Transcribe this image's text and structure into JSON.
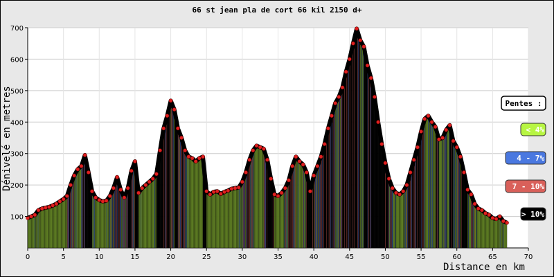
{
  "chart_data": {
    "type": "area",
    "title": "66 st jean pla de cort 66 kil 2150 d+",
    "xlabel": "Distance en km",
    "ylabel": "Dénivelé en metres",
    "xlim": [
      0,
      70
    ],
    "ylim": [
      0,
      700
    ],
    "xticks": [
      0,
      5,
      10,
      15,
      20,
      25,
      30,
      35,
      40,
      45,
      50,
      55,
      60,
      65,
      70
    ],
    "yticks": [
      100,
      200,
      300,
      400,
      500,
      600,
      700
    ],
    "grid": true,
    "legend": {
      "title": "Pentes :",
      "placement": "right",
      "items": [
        {
          "label": "< 4%",
          "color": "#b7f542",
          "text_color": "#ffffff"
        },
        {
          "label": "4 - 7%",
          "color": "#4a78e0",
          "text_color": "#ffffff"
        },
        {
          "label": "7 - 10%",
          "color": "#d9605a",
          "text_color": "#ffffff"
        },
        {
          "label": "> 10%",
          "color": "#000000",
          "text_color": "#ffffff"
        }
      ]
    },
    "series": [
      {
        "x": [
          0,
          0.5,
          1,
          1.5,
          2,
          2.5,
          3,
          3.5,
          4,
          4.5,
          5,
          5.5,
          6,
          6.5,
          7,
          7.5,
          8,
          8.5,
          9,
          9.5,
          10,
          10.5,
          11,
          11.5,
          12,
          12.5,
          13,
          13.5,
          14,
          14.5,
          15,
          15.5,
          16,
          16.5,
          17,
          17.5,
          18,
          18.5,
          19,
          19.5,
          20,
          20.5,
          21,
          21.5,
          22,
          22.5,
          23,
          23.5,
          24,
          24.5,
          25,
          25.5,
          26,
          26.5,
          27,
          27.5,
          28,
          28.5,
          29,
          29.5,
          30,
          30.5,
          31,
          31.5,
          32,
          32.5,
          33,
          33.5,
          34,
          34.5,
          35,
          35.5,
          36,
          36.5,
          37,
          37.5,
          38,
          38.5,
          39,
          39.5,
          40,
          40.5,
          41,
          41.5,
          42,
          42.5,
          43,
          43.5,
          44,
          44.5,
          45,
          45.5,
          46,
          46.5,
          47,
          47.5,
          48,
          48.5,
          49,
          49.5,
          50,
          50.5,
          51,
          51.5,
          52,
          52.5,
          53,
          53.5,
          54,
          54.5,
          55,
          55.5,
          56,
          56.5,
          57,
          57.5,
          58,
          58.5,
          59,
          59.5,
          60,
          60.5,
          61,
          61.5,
          62,
          62.5,
          63,
          63.5,
          64,
          64.5,
          65,
          65.5,
          66,
          66.5,
          67
        ],
        "y": [
          95,
          100,
          105,
          120,
          125,
          128,
          130,
          135,
          140,
          148,
          155,
          165,
          200,
          230,
          250,
          260,
          295,
          240,
          180,
          160,
          152,
          148,
          150,
          165,
          190,
          225,
          185,
          160,
          190,
          245,
          275,
          175,
          190,
          200,
          210,
          220,
          235,
          310,
          380,
          420,
          468,
          440,
          380,
          350,
          310,
          290,
          285,
          275,
          285,
          290,
          180,
          170,
          178,
          180,
          172,
          178,
          182,
          188,
          190,
          192,
          210,
          240,
          280,
          310,
          325,
          320,
          315,
          280,
          220,
          170,
          165,
          175,
          190,
          215,
          260,
          290,
          275,
          265,
          240,
          180,
          230,
          260,
          290,
          330,
          380,
          420,
          460,
          480,
          510,
          560,
          600,
          650,
          697,
          660,
          640,
          580,
          540,
          480,
          400,
          330,
          270,
          220,
          190,
          175,
          170,
          180,
          200,
          240,
          280,
          320,
          370,
          410,
          420,
          400,
          385,
          345,
          350,
          375,
          390,
          340,
          320,
          290,
          240,
          185,
          170,
          140,
          125,
          120,
          110,
          105,
          95,
          92,
          100,
          85,
          80
        ]
      }
    ]
  }
}
